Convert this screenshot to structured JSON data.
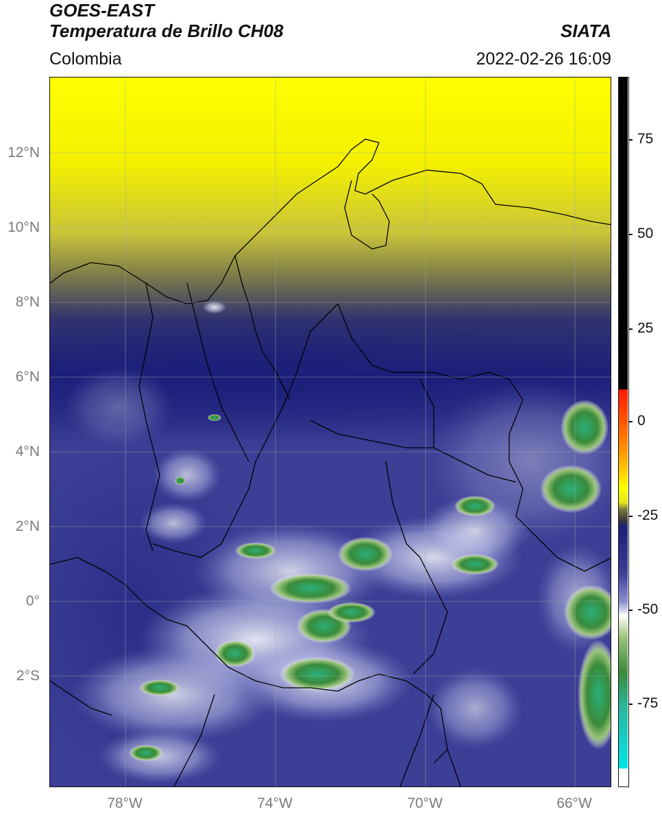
{
  "header": {
    "satellite": "GOES-EAST",
    "product": "Temperatura de Brillo CH08",
    "region": "Colombia",
    "agency": "SIATA",
    "datetime": "2022-02-26 16:09"
  },
  "map": {
    "lat_ticks": [
      "12°N",
      "10°N",
      "8°N",
      "6°N",
      "4°N",
      "2°N",
      "0°",
      "2°S"
    ],
    "lon_ticks": [
      "78°W",
      "74°W",
      "70°W",
      "66°W"
    ],
    "extent": {
      "lon_min": -80,
      "lon_max": -65,
      "lat_min": -5,
      "lat_max": 14
    }
  },
  "colorbar": {
    "ticks": [
      "75",
      "50",
      "25",
      "0",
      "-25",
      "-50",
      "-75"
    ],
    "colors": {
      "warm_high": "#000000",
      "red": "#ff1a00",
      "orange": "#ff9a00",
      "yellow": "#ffff00",
      "olive": "#7a7a3a",
      "navy": "#1b1f7a",
      "lavender": "#8a8fd0",
      "white": "#ffffff",
      "green": "#3a8a3a",
      "teal": "#2ab79e",
      "cyan": "#00e6e6"
    }
  }
}
